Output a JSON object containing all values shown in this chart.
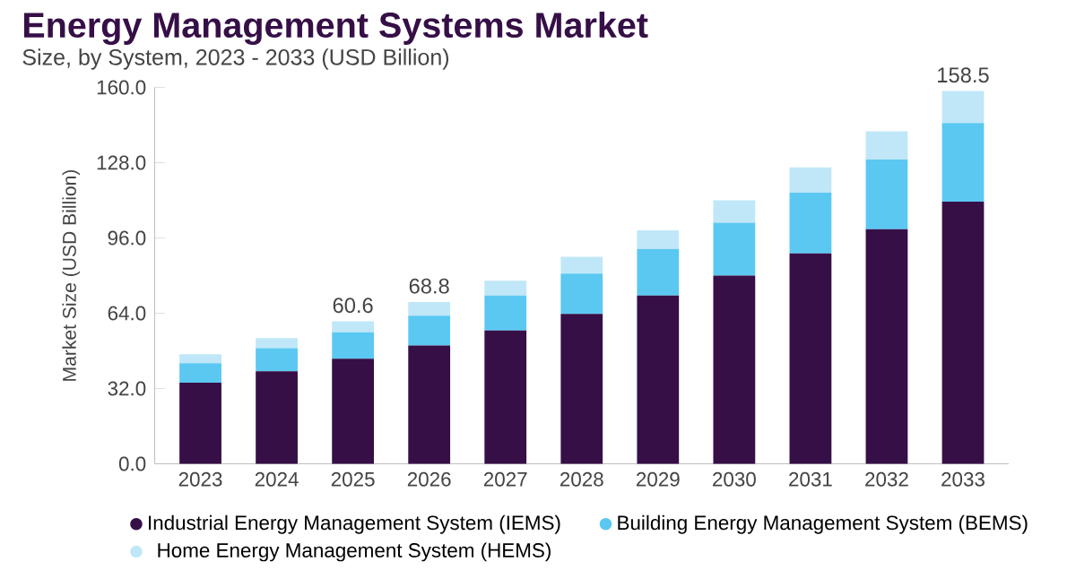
{
  "chart_data": {
    "type": "bar",
    "title": "Energy Management Systems Market",
    "subtitle": "Size, by System, 2023 - 2033 (USD Billion)",
    "ylabel": "Market Size (USD Billion)",
    "categories": [
      "2023",
      "2024",
      "2025",
      "2026",
      "2027",
      "2028",
      "2029",
      "2030",
      "2031",
      "2032",
      "2033"
    ],
    "stacked": true,
    "series": [
      {
        "name": "Industrial Energy Management System (IEMS)",
        "color": "#360f47",
        "values": [
          34.5,
          39.3,
          44.7,
          50.3,
          56.7,
          63.7,
          71.5,
          80.0,
          89.4,
          99.7,
          111.4
        ]
      },
      {
        "name": "Building Energy Management System (BEMS)",
        "color": "#5bc8f2",
        "values": [
          8.3,
          9.8,
          11.2,
          12.7,
          14.8,
          17.2,
          19.8,
          22.5,
          25.8,
          29.6,
          33.5
        ]
      },
      {
        "name": "Home Energy Management System (HEMS)",
        "color": "#bfe7f8",
        "values": [
          3.8,
          4.3,
          4.7,
          5.8,
          6.3,
          7.1,
          7.9,
          9.5,
          10.8,
          12.0,
          13.6
        ]
      }
    ],
    "totals": [
      null,
      null,
      "60.6",
      "68.8",
      null,
      null,
      null,
      null,
      null,
      null,
      "158.5"
    ],
    "ylim": [
      0,
      160
    ],
    "yticks": [
      {
        "value": 0,
        "label": "0.0"
      },
      {
        "value": 32,
        "label": "32.0"
      },
      {
        "value": 64,
        "label": "64.0"
      },
      {
        "value": 96,
        "label": "96.0"
      },
      {
        "value": 128,
        "label": "128.0"
      },
      {
        "value": 160,
        "label": "160.0"
      }
    ],
    "grid": false,
    "legend": "bottom"
  }
}
